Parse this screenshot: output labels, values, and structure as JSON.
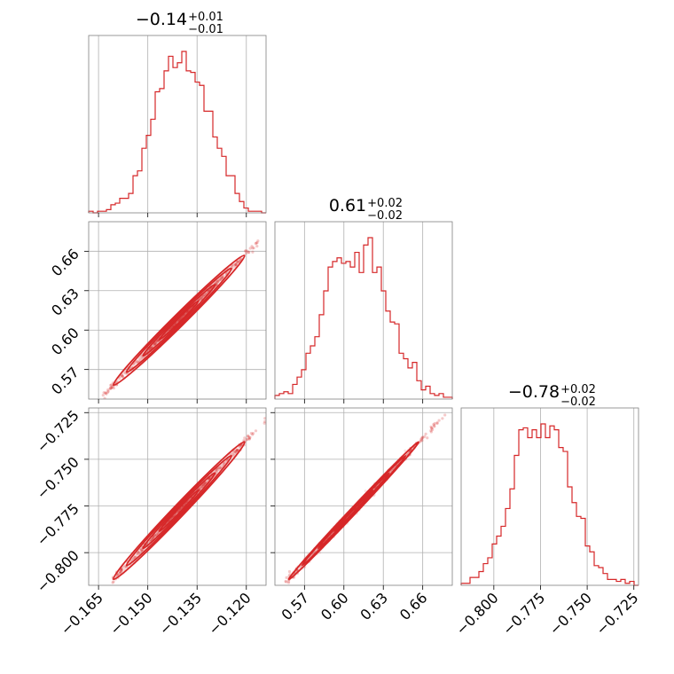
{
  "chart_data": {
    "type": "corner",
    "color": "#d62728",
    "parameters": [
      {
        "title_median": "−0.14",
        "title_plus": "+0.01",
        "title_minus": "−0.01",
        "range": [
          -0.168,
          -0.114
        ],
        "ticks": [
          -0.165,
          -0.15,
          -0.135,
          -0.12
        ],
        "tick_labels": [
          "−0.165",
          "−0.150",
          "−0.135",
          "−0.120"
        ]
      },
      {
        "title_median": "0.61",
        "title_plus": "+0.02",
        "title_minus": "−0.02",
        "range": [
          0.5475,
          0.6825
        ],
        "ticks": [
          0.57,
          0.6,
          0.63,
          0.66
        ],
        "tick_labels": [
          "0.57",
          "0.60",
          "0.63",
          "0.66"
        ]
      },
      {
        "title_median": "−0.78",
        "title_plus": "+0.02",
        "title_minus": "−0.02",
        "range": [
          -0.8175,
          -0.7225
        ],
        "ticks": [
          -0.8,
          -0.775,
          -0.75,
          -0.725
        ],
        "tick_labels": [
          "−0.800",
          "−0.775",
          "−0.750",
          "−0.725"
        ]
      }
    ],
    "histograms": [
      {
        "param": 0,
        "bin_start": -0.168,
        "bin_width": 0.00135,
        "counts": [
          1,
          0,
          1,
          1,
          2,
          5,
          6,
          9,
          9,
          12,
          23,
          26,
          40,
          48,
          58,
          75,
          77,
          88,
          97,
          90,
          93,
          100,
          88,
          87,
          81,
          79,
          63,
          63,
          47,
          40,
          35,
          23,
          23,
          12,
          7,
          3,
          1,
          1,
          1,
          0
        ]
      },
      {
        "param": 1,
        "bin_start": 0.5475,
        "bin_width": 0.003375,
        "counts": [
          2,
          3,
          4,
          3,
          8,
          12,
          16,
          25,
          29,
          34,
          46,
          59,
          72,
          75,
          77,
          74,
          75,
          72,
          80,
          69,
          84,
          88,
          69,
          72,
          59,
          48,
          42,
          41,
          25,
          22,
          17,
          20,
          10,
          5,
          7,
          3,
          2,
          3,
          1,
          1
        ]
      },
      {
        "param": 2,
        "bin_start": -0.8175,
        "bin_width": 0.002375,
        "counts": [
          1,
          1,
          4,
          4,
          7,
          11,
          14,
          21,
          25,
          30,
          39,
          49,
          66,
          79,
          80,
          75,
          79,
          75,
          82,
          75,
          81,
          79,
          70,
          68,
          50,
          42,
          35,
          34,
          20,
          17,
          10,
          9,
          6,
          3,
          3,
          2,
          3,
          1,
          2,
          0
        ]
      }
    ],
    "correlations": {
      "0-1": 0.99,
      "0-2": 0.99,
      "1-2": 0.995
    },
    "grid": true
  }
}
